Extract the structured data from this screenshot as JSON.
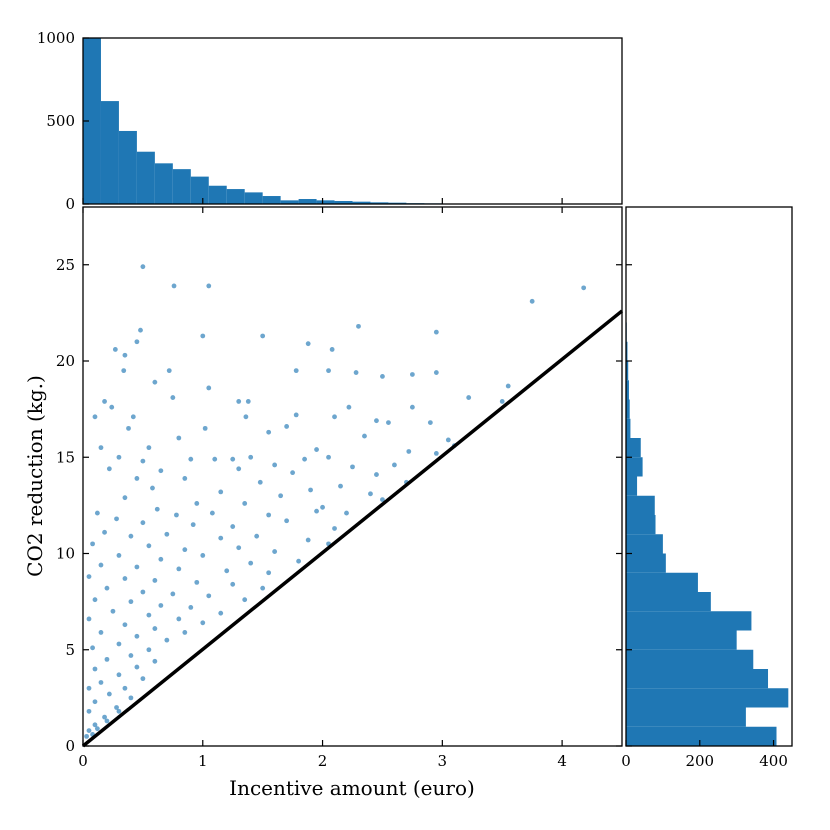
{
  "chart_data": {
    "type": "scatter",
    "xlabel": "Incentive amount (euro)",
    "ylabel": "CO2 reduction (kg.)",
    "xlim": [
      0,
      4.5
    ],
    "ylim": [
      0,
      28
    ],
    "x_ticks": [
      "0",
      "1",
      "2",
      "3",
      "4"
    ],
    "y_ticks": [
      "0",
      "5",
      "10",
      "15",
      "20",
      "25"
    ],
    "point_color": "#1f77b4",
    "reference_line": {
      "x": [
        0,
        4.5
      ],
      "y": [
        0,
        22.6
      ],
      "color": "#000000"
    },
    "marginal_x": {
      "type": "bar",
      "ylim": [
        0,
        1000
      ],
      "y_ticks": [
        "0",
        "500",
        "1000"
      ],
      "bin_width": 0.15,
      "bin_starts": [
        0,
        0.15,
        0.3,
        0.45,
        0.6,
        0.75,
        0.9,
        1.05,
        1.2,
        1.35,
        1.5,
        1.65,
        1.8,
        1.95,
        2.1,
        2.25,
        2.4,
        2.55,
        2.7,
        2.85,
        3.0,
        3.15,
        3.3,
        3.45,
        3.6,
        3.75,
        3.9,
        4.05
      ],
      "counts": [
        1000,
        620,
        440,
        315,
        245,
        210,
        165,
        110,
        90,
        70,
        48,
        22,
        30,
        22,
        18,
        14,
        10,
        8,
        5,
        4,
        3,
        2,
        2,
        2,
        1,
        1,
        1,
        1
      ]
    },
    "marginal_y": {
      "type": "bar",
      "xlim": [
        0,
        450
      ],
      "x_ticks": [
        "0",
        "200",
        "400"
      ],
      "bin_width": 1,
      "bin_starts": [
        0,
        1,
        2,
        3,
        4,
        5,
        6,
        7,
        8,
        9,
        10,
        11,
        12,
        13,
        14,
        15,
        16,
        17,
        18,
        19,
        20,
        21
      ],
      "counts": [
        408,
        325,
        440,
        385,
        345,
        300,
        340,
        230,
        195,
        108,
        100,
        80,
        78,
        30,
        45,
        40,
        12,
        10,
        8,
        6,
        4,
        2
      ]
    },
    "series": [
      {
        "values": [
          [
            0.5,
            24.9
          ],
          [
            0.76,
            23.9
          ],
          [
            1.05,
            23.9
          ],
          [
            3.75,
            23.1
          ],
          [
            4.18,
            23.8
          ],
          [
            0.48,
            21.6
          ],
          [
            1.0,
            21.3
          ],
          [
            1.5,
            21.3
          ],
          [
            2.3,
            21.8
          ],
          [
            2.95,
            21.5
          ],
          [
            0.27,
            20.6
          ],
          [
            0.35,
            20.3
          ],
          [
            0.45,
            21.0
          ],
          [
            1.88,
            20.9
          ],
          [
            2.08,
            20.6
          ],
          [
            0.34,
            19.5
          ],
          [
            0.72,
            19.5
          ],
          [
            1.78,
            19.5
          ],
          [
            2.05,
            19.5
          ],
          [
            2.28,
            19.4
          ],
          [
            2.5,
            19.2
          ],
          [
            2.75,
            19.3
          ],
          [
            2.95,
            19.4
          ],
          [
            3.55,
            18.7
          ],
          [
            0.6,
            18.9
          ],
          [
            1.05,
            18.6
          ],
          [
            3.22,
            18.1
          ],
          [
            3.5,
            17.9
          ],
          [
            0.75,
            18.1
          ],
          [
            0.18,
            17.9
          ],
          [
            0.24,
            17.6
          ],
          [
            1.3,
            17.9
          ],
          [
            1.38,
            17.9
          ],
          [
            2.22,
            17.6
          ],
          [
            2.75,
            17.6
          ],
          [
            0.1,
            17.1
          ],
          [
            0.42,
            17.1
          ],
          [
            1.36,
            17.1
          ],
          [
            1.78,
            17.2
          ],
          [
            2.1,
            17.1
          ],
          [
            2.45,
            16.9
          ],
          [
            2.55,
            16.8
          ],
          [
            2.9,
            16.8
          ],
          [
            3.05,
            15.9
          ],
          [
            0.38,
            16.5
          ],
          [
            0.8,
            16.0
          ],
          [
            1.02,
            16.5
          ],
          [
            1.55,
            16.3
          ],
          [
            1.7,
            16.6
          ],
          [
            2.35,
            16.1
          ],
          [
            0.15,
            15.5
          ],
          [
            0.55,
            15.5
          ],
          [
            1.95,
            15.4
          ],
          [
            2.72,
            15.3
          ],
          [
            3.1,
            15.6
          ],
          [
            0.3,
            15.0
          ],
          [
            0.5,
            14.8
          ],
          [
            0.9,
            14.9
          ],
          [
            1.1,
            14.9
          ],
          [
            1.25,
            14.9
          ],
          [
            1.4,
            15.0
          ],
          [
            1.6,
            14.6
          ],
          [
            1.85,
            14.9
          ],
          [
            2.05,
            15.0
          ],
          [
            2.6,
            14.6
          ],
          [
            2.95,
            15.2
          ],
          [
            0.22,
            14.4
          ],
          [
            0.65,
            14.3
          ],
          [
            1.3,
            14.4
          ],
          [
            1.75,
            14.2
          ],
          [
            2.25,
            14.5
          ],
          [
            2.45,
            14.1
          ],
          [
            0.45,
            13.9
          ],
          [
            0.85,
            13.9
          ],
          [
            1.48,
            13.7
          ],
          [
            2.15,
            13.5
          ],
          [
            2.7,
            13.7
          ],
          [
            0.58,
            13.4
          ],
          [
            1.15,
            13.2
          ],
          [
            1.65,
            13.0
          ],
          [
            1.9,
            13.3
          ],
          [
            2.4,
            13.1
          ],
          [
            0.35,
            12.9
          ],
          [
            0.95,
            12.6
          ],
          [
            1.35,
            12.6
          ],
          [
            2.0,
            12.4
          ],
          [
            2.5,
            12.8
          ],
          [
            0.12,
            12.1
          ],
          [
            0.62,
            12.3
          ],
          [
            0.78,
            12.0
          ],
          [
            1.08,
            12.1
          ],
          [
            1.55,
            12.0
          ],
          [
            1.95,
            12.2
          ],
          [
            2.2,
            12.1
          ],
          [
            0.28,
            11.8
          ],
          [
            0.5,
            11.6
          ],
          [
            0.92,
            11.5
          ],
          [
            1.25,
            11.4
          ],
          [
            1.7,
            11.7
          ],
          [
            2.1,
            11.3
          ],
          [
            0.18,
            11.1
          ],
          [
            0.4,
            10.9
          ],
          [
            0.7,
            11.0
          ],
          [
            1.15,
            10.8
          ],
          [
            1.45,
            10.9
          ],
          [
            1.88,
            10.7
          ],
          [
            2.05,
            10.5
          ],
          [
            0.08,
            10.5
          ],
          [
            0.55,
            10.4
          ],
          [
            0.85,
            10.2
          ],
          [
            1.3,
            10.3
          ],
          [
            1.6,
            10.1
          ],
          [
            0.3,
            9.9
          ],
          [
            0.65,
            9.7
          ],
          [
            1.0,
            9.9
          ],
          [
            1.4,
            9.5
          ],
          [
            1.8,
            9.6
          ],
          [
            0.15,
            9.4
          ],
          [
            0.45,
            9.3
          ],
          [
            0.8,
            9.2
          ],
          [
            1.2,
            9.1
          ],
          [
            1.55,
            9.0
          ],
          [
            0.05,
            8.8
          ],
          [
            0.35,
            8.7
          ],
          [
            0.6,
            8.6
          ],
          [
            0.95,
            8.5
          ],
          [
            1.25,
            8.4
          ],
          [
            1.5,
            8.2
          ],
          [
            0.2,
            8.2
          ],
          [
            0.5,
            8.0
          ],
          [
            0.75,
            7.9
          ],
          [
            1.05,
            7.8
          ],
          [
            1.35,
            7.6
          ],
          [
            0.1,
            7.6
          ],
          [
            0.4,
            7.5
          ],
          [
            0.65,
            7.3
          ],
          [
            0.9,
            7.2
          ],
          [
            1.15,
            6.9
          ],
          [
            0.25,
            7.0
          ],
          [
            0.55,
            6.8
          ],
          [
            0.8,
            6.6
          ],
          [
            1.0,
            6.4
          ],
          [
            0.05,
            6.6
          ],
          [
            0.35,
            6.3
          ],
          [
            0.6,
            6.1
          ],
          [
            0.85,
            5.9
          ],
          [
            0.15,
            5.9
          ],
          [
            0.45,
            5.7
          ],
          [
            0.7,
            5.5
          ],
          [
            0.3,
            5.3
          ],
          [
            0.55,
            5.0
          ],
          [
            0.08,
            5.1
          ],
          [
            0.4,
            4.7
          ],
          [
            0.6,
            4.4
          ],
          [
            0.2,
            4.5
          ],
          [
            0.45,
            4.1
          ],
          [
            0.1,
            4.0
          ],
          [
            0.3,
            3.7
          ],
          [
            0.5,
            3.5
          ],
          [
            0.15,
            3.3
          ],
          [
            0.35,
            3.0
          ],
          [
            0.05,
            3.0
          ],
          [
            0.22,
            2.7
          ],
          [
            0.4,
            2.5
          ],
          [
            0.1,
            2.3
          ],
          [
            0.28,
            2.0
          ],
          [
            0.05,
            1.8
          ],
          [
            0.18,
            1.5
          ],
          [
            0.3,
            1.8
          ],
          [
            0.1,
            1.1
          ],
          [
            0.2,
            1.3
          ],
          [
            0.05,
            0.8
          ],
          [
            0.12,
            0.9
          ],
          [
            0.03,
            0.5
          ],
          [
            0.08,
            0.6
          ]
        ]
      }
    ]
  }
}
